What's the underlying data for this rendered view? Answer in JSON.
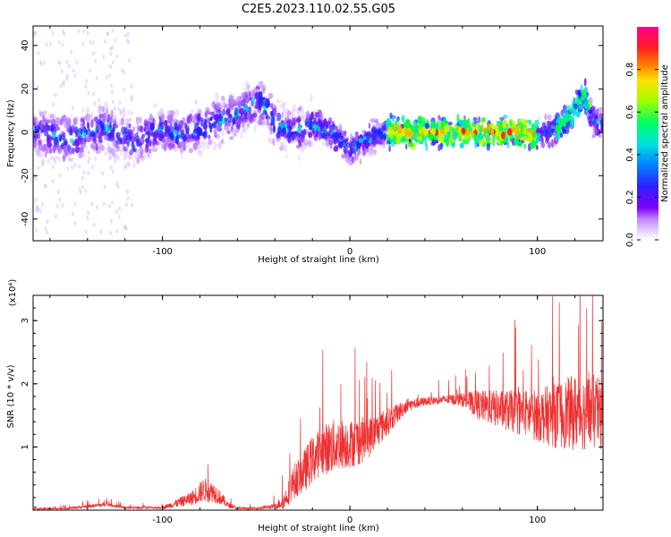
{
  "title": "C2E5.2023.110.02.55.G05",
  "colors": {
    "snr_line": "#f03030",
    "axis": "#000000",
    "colormap": [
      "#ffffff",
      "#e0c8ff",
      "#b070ff",
      "#7010ff",
      "#2020ff",
      "#00e0e0",
      "#00ff40",
      "#c0ff00",
      "#ffb000",
      "#ff2020",
      "#ff0080"
    ]
  },
  "chart_data": [
    {
      "type": "heatmap",
      "xlabel": "Height of straight line (km)",
      "ylabel": "Frequency (Hz)",
      "xlim": [
        -169,
        135
      ],
      "ylim": [
        -50,
        49
      ],
      "x_ticks": [
        -100,
        0,
        100
      ],
      "y_ticks": [
        -40,
        -20,
        0,
        20,
        40
      ],
      "ridge": {
        "x": [
          -169,
          -150,
          -130,
          -115,
          -100,
          -90,
          -75,
          -60,
          -50,
          -45,
          -40,
          -30,
          -20,
          -10,
          0,
          5,
          10,
          20,
          30,
          40,
          50,
          60,
          70,
          80,
          90,
          100,
          105,
          110,
          115,
          120,
          125,
          130,
          135
        ],
        "frequency": [
          0,
          -3,
          2,
          -5,
          2,
          -2,
          4,
          8,
          14,
          12,
          4,
          0,
          3,
          0,
          -8,
          -5,
          -3,
          0,
          0,
          0,
          0,
          0,
          0,
          0,
          0,
          -1,
          0,
          2,
          5,
          10,
          18,
          6,
          2
        ]
      },
      "colorbar": {
        "label": "Normalized spectral amplitude",
        "range": [
          0,
          1
        ],
        "ticks": [
          "0.0",
          "0.2",
          "0.4",
          "0.6",
          "0.8"
        ]
      }
    },
    {
      "type": "line",
      "xlabel": "Height of straight line (km)",
      "ylabel": "SNR (10 * v/v)",
      "y_multiplier": "(x10⁴)",
      "xlim": [
        -169,
        135
      ],
      "ylim": [
        0,
        3.4
      ],
      "x_ticks": [
        -100,
        0,
        100
      ],
      "y_ticks": [
        1,
        2,
        3
      ],
      "envelope": {
        "x": [
          -169,
          -150,
          -140,
          -130,
          -120,
          -100,
          -85,
          -78,
          -72,
          -65,
          -60,
          -50,
          -40,
          -35,
          -30,
          -25,
          -20,
          -15,
          -10,
          -5,
          0,
          5,
          10,
          20,
          30,
          40,
          50,
          60,
          70,
          80,
          90,
          100,
          110,
          120,
          130,
          135
        ],
        "mean": [
          0.02,
          0.03,
          0.06,
          0.09,
          0.04,
          0.04,
          0.18,
          0.32,
          0.28,
          0.08,
          0.03,
          0.03,
          0.06,
          0.15,
          0.45,
          0.6,
          0.8,
          0.95,
          1.0,
          1.05,
          1.05,
          1.1,
          1.15,
          1.4,
          1.65,
          1.72,
          1.75,
          1.75,
          1.65,
          1.6,
          1.55,
          1.5,
          1.5,
          1.55,
          1.55,
          1.5
        ],
        "noise": [
          0.02,
          0.03,
          0.05,
          0.05,
          0.03,
          0.04,
          0.2,
          0.35,
          0.3,
          0.08,
          0.03,
          0.03,
          0.08,
          0.25,
          0.5,
          0.6,
          0.7,
          0.7,
          0.8,
          0.75,
          0.7,
          0.7,
          0.6,
          0.4,
          0.2,
          0.12,
          0.12,
          0.2,
          0.45,
          0.55,
          0.65,
          0.75,
          0.95,
          1.1,
          1.1,
          1.0
        ]
      }
    }
  ]
}
